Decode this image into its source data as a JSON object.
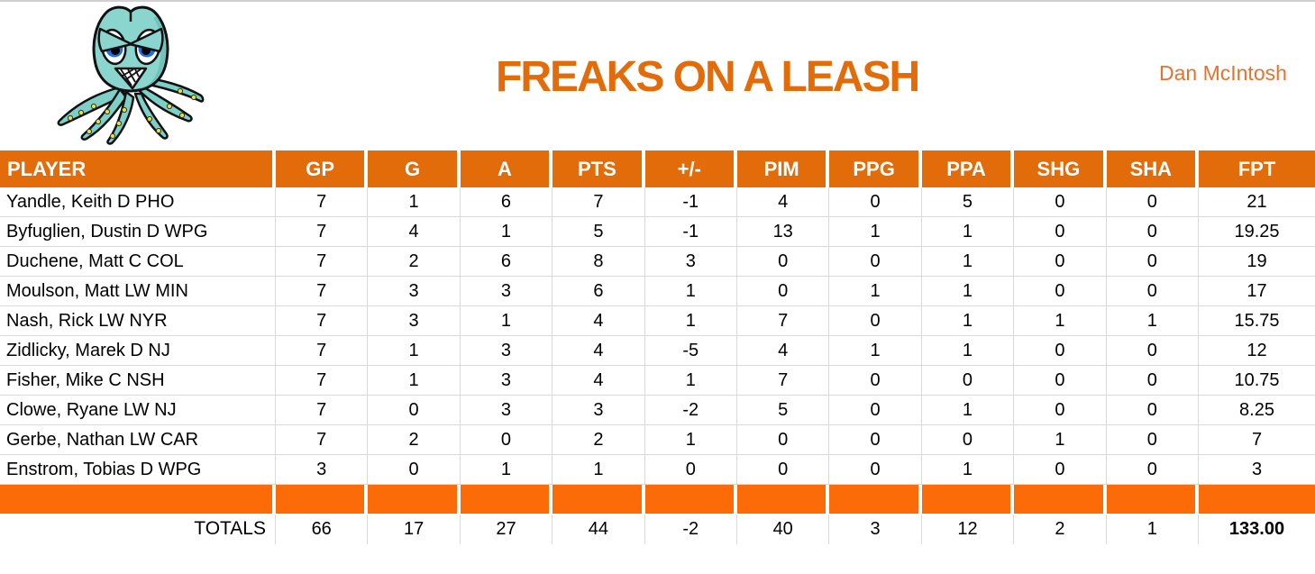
{
  "header": {
    "title": "FREAKS ON A LEASH",
    "owner": "Dan McIntosh",
    "logo": "angry-octopus-mascot"
  },
  "table": {
    "columns": [
      "PLAYER",
      "GP",
      "G",
      "A",
      "PTS",
      "+/-",
      "PIM",
      "PPG",
      "PPA",
      "SHG",
      "SHA",
      "FPT"
    ],
    "rows": [
      {
        "player": "Yandle, Keith D PHO",
        "stats": [
          "7",
          "1",
          "6",
          "7",
          "-1",
          "4",
          "0",
          "5",
          "0",
          "0",
          "21"
        ]
      },
      {
        "player": "Byfuglien, Dustin D WPG",
        "stats": [
          "7",
          "4",
          "1",
          "5",
          "-1",
          "13",
          "1",
          "1",
          "0",
          "0",
          "19.25"
        ]
      },
      {
        "player": "Duchene, Matt C COL",
        "stats": [
          "7",
          "2",
          "6",
          "8",
          "3",
          "0",
          "0",
          "1",
          "0",
          "0",
          "19"
        ]
      },
      {
        "player": "Moulson, Matt LW MIN",
        "stats": [
          "7",
          "3",
          "3",
          "6",
          "1",
          "0",
          "1",
          "1",
          "0",
          "0",
          "17"
        ]
      },
      {
        "player": "Nash, Rick LW NYR",
        "stats": [
          "7",
          "3",
          "1",
          "4",
          "1",
          "7",
          "0",
          "1",
          "1",
          "1",
          "15.75"
        ]
      },
      {
        "player": "Zidlicky, Marek D NJ",
        "stats": [
          "7",
          "1",
          "3",
          "4",
          "-5",
          "4",
          "1",
          "1",
          "0",
          "0",
          "12"
        ]
      },
      {
        "player": "Fisher, Mike C NSH",
        "stats": [
          "7",
          "1",
          "3",
          "4",
          "1",
          "7",
          "0",
          "0",
          "0",
          "0",
          "10.75"
        ]
      },
      {
        "player": "Clowe, Ryane LW NJ",
        "stats": [
          "7",
          "0",
          "3",
          "3",
          "-2",
          "5",
          "0",
          "1",
          "0",
          "0",
          "8.25"
        ]
      },
      {
        "player": "Gerbe, Nathan LW CAR",
        "stats": [
          "7",
          "2",
          "0",
          "2",
          "1",
          "0",
          "0",
          "0",
          "1",
          "0",
          "7"
        ]
      },
      {
        "player": "Enstrom, Tobias D WPG",
        "stats": [
          "3",
          "0",
          "1",
          "1",
          "0",
          "0",
          "0",
          "1",
          "0",
          "0",
          "3"
        ]
      }
    ],
    "totals": {
      "label": "TOTALS",
      "stats": [
        "66",
        "17",
        "27",
        "44",
        "-2",
        "40",
        "3",
        "12",
        "2",
        "1",
        "133.00"
      ]
    }
  },
  "colors": {
    "header_orange": "#E26B0A",
    "separator_orange": "#FB6C09",
    "title_orange": "#E36C0A",
    "owner_orange": "#E8722B",
    "gridline": "#D9D9D9"
  }
}
